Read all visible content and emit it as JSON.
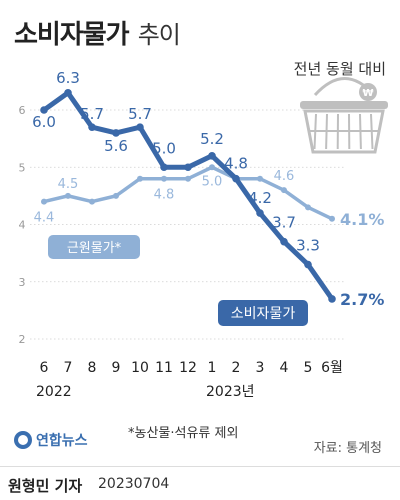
{
  "header": {
    "title": "소비자물가",
    "title_suffix": "추이",
    "subtitle": "전년 동월 대비"
  },
  "chart_data": {
    "type": "line",
    "categories": [
      "6",
      "7",
      "8",
      "9",
      "10",
      "11",
      "12",
      "1",
      "2",
      "3",
      "4",
      "5",
      "6월"
    ],
    "year_labels": [
      "2022",
      "2023년"
    ],
    "ylim": [
      2,
      6.4
    ],
    "yticks": [
      "2",
      "3",
      "4",
      "5",
      "6"
    ],
    "grid": true,
    "series": [
      {
        "name": "소비자물가",
        "color": "#3a68a8",
        "values": [
          6.0,
          6.3,
          5.7,
          5.6,
          5.7,
          5.0,
          5.0,
          5.2,
          4.8,
          4.2,
          3.7,
          3.3,
          2.7
        ],
        "labels": [
          "6.0",
          "6.3",
          "5.7",
          "5.6",
          "5.7",
          "5.0",
          "",
          "5.2",
          "4.8",
          "4.2",
          "3.7",
          "3.3",
          "2.7%"
        ]
      },
      {
        "name": "근원물가*",
        "color": "#8fb0d6",
        "values": [
          4.4,
          4.5,
          4.4,
          4.5,
          4.8,
          4.8,
          4.8,
          5.0,
          4.8,
          4.8,
          4.6,
          4.3,
          4.1
        ],
        "labels": [
          "4.4",
          "4.5",
          "",
          "",
          "",
          "4.8",
          "",
          "5.0",
          "",
          "",
          "4.6",
          "",
          "4.1%"
        ]
      }
    ]
  },
  "footnote": "*농산물·석유류 제외",
  "source": "자료: 통계청",
  "agency": "연합뉴스",
  "byline": {
    "reporter": "원형민 기자",
    "date": "20230704"
  },
  "icons": [
    "shopping-basket-icon",
    "won-coin-icon",
    "agency-logo-icon"
  ]
}
